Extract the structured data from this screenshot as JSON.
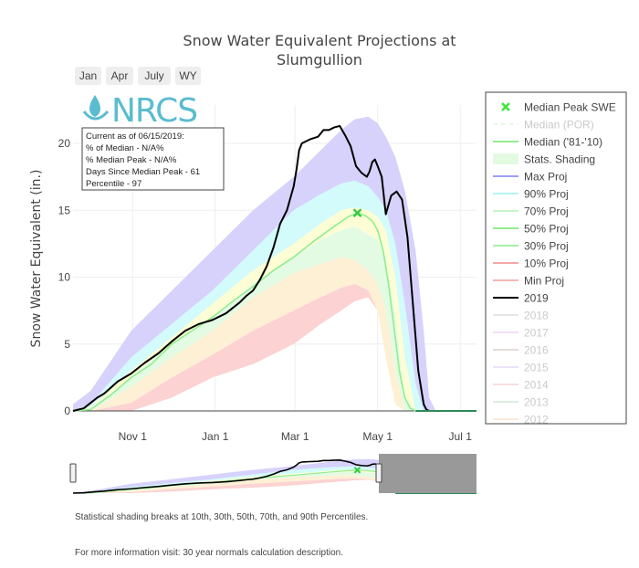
{
  "chart_data": {
    "type": "line",
    "title": "Snow Water Equivalent Projections at Slumgullion",
    "title_lines": [
      "Snow Water Equivalent Projections at",
      "Slumgullion"
    ],
    "ylabel": "Snow Water Equivalent (in.)",
    "xlabel": "",
    "ylim": [
      0,
      22
    ],
    "y_ticks": [
      0,
      5,
      10,
      15,
      20
    ],
    "x_ticks": [
      {
        "label": "Nov  1",
        "day": 31
      },
      {
        "label": "Jan  1",
        "day": 92
      },
      {
        "label": "Mar  1",
        "day": 151
      },
      {
        "label": "May  1",
        "day": 212
      },
      {
        "label": "Jul  1",
        "day": 273
      }
    ],
    "x_range_days": [
      -13,
      285
    ],
    "percentile_bands": {
      "x": [
        -13,
        0,
        30,
        60,
        90,
        120,
        150,
        170,
        185,
        195,
        205,
        212,
        218,
        225,
        232,
        240,
        246,
        250,
        255
      ],
      "p_max": [
        0.5,
        1.5,
        6,
        9,
        12,
        15,
        17.5,
        19.5,
        21,
        21.8,
        22,
        21.5,
        20.5,
        19,
        16.5,
        12,
        6,
        1,
        0
      ],
      "p90": [
        0,
        0.5,
        4,
        6.5,
        9,
        12,
        15,
        16.2,
        17,
        17.2,
        16.8,
        16,
        15,
        12.5,
        8,
        2,
        0,
        0,
        0
      ],
      "p70": [
        0,
        0.3,
        3,
        5.5,
        8,
        10.5,
        12.5,
        14,
        15,
        15.2,
        15,
        14.5,
        13.5,
        10,
        4,
        0,
        0,
        0,
        0
      ],
      "p50": [
        0,
        0.2,
        2.5,
        5,
        7,
        9.5,
        11.5,
        12.8,
        13.5,
        13.8,
        13.2,
        12.8,
        11.5,
        7,
        1,
        0,
        0,
        0,
        0
      ],
      "p30": [
        0,
        0,
        1.8,
        4,
        6,
        8.5,
        10.3,
        11,
        11.5,
        11.3,
        10.5,
        9.5,
        7.5,
        3,
        0,
        0,
        0,
        0,
        0
      ],
      "p10": [
        0,
        0,
        0.6,
        2.5,
        4.2,
        6,
        7.5,
        8.5,
        9.2,
        9.5,
        9,
        7.5,
        4,
        0.5,
        0,
        0,
        0,
        0,
        0
      ],
      "p_min": [
        0,
        0,
        0,
        1,
        2.5,
        3.5,
        5,
        6.5,
        7.5,
        8.2,
        8.5,
        7.5,
        4,
        0.5,
        0,
        0,
        0,
        0,
        0
      ]
    },
    "series": [
      {
        "name": "Median ('81-'10)",
        "color": "#90ee90",
        "x": [
          -13,
          0,
          15,
          30,
          45,
          60,
          75,
          90,
          105,
          120,
          135,
          150,
          165,
          180,
          190,
          197,
          203,
          208,
          212,
          216,
          220,
          225,
          228,
          232,
          236,
          240,
          244
        ],
        "values": [
          0,
          0.1,
          1.2,
          2.5,
          3.5,
          5,
          6,
          7,
          8.2,
          9.3,
          10.5,
          11.5,
          12.7,
          13.8,
          14.5,
          14.8,
          14.6,
          14.2,
          13.5,
          12,
          9.5,
          5.5,
          3,
          1,
          0.2,
          0,
          0
        ]
      },
      {
        "name": "2019",
        "color": "#000000",
        "x": [
          -13,
          -5,
          0,
          5,
          10,
          20,
          30,
          40,
          50,
          60,
          70,
          80,
          90,
          100,
          110,
          115,
          120,
          125,
          130,
          135,
          140,
          145,
          150,
          152,
          154,
          156,
          158,
          162,
          168,
          172,
          176,
          180,
          184,
          188,
          192,
          196,
          200,
          204,
          206,
          208,
          210,
          212,
          215,
          218,
          222,
          226,
          230,
          234,
          238,
          242,
          246,
          248,
          250,
          252,
          255,
          285
        ],
        "values": [
          0,
          0.2,
          0.6,
          1,
          1.3,
          2.2,
          2.8,
          3.6,
          4.3,
          5.2,
          6,
          6.5,
          6.8,
          7.3,
          8.1,
          8.6,
          9,
          9.8,
          10.8,
          12.2,
          14,
          15,
          16.8,
          18,
          19.5,
          20,
          20.1,
          20.3,
          20.5,
          21,
          21,
          21.2,
          21.3,
          20.6,
          19.8,
          18.3,
          17.8,
          17.5,
          17.9,
          18.6,
          18.8,
          18.3,
          17.5,
          14.7,
          16.1,
          16.4,
          15.8,
          13,
          8,
          3,
          0.5,
          0.1,
          0,
          0,
          0,
          0
        ]
      }
    ],
    "median_peak": {
      "name": "Median Peak SWE",
      "day": 197,
      "value": 14.8,
      "color": "#2ecc40"
    },
    "legend": [
      {
        "label": "Median Peak SWE",
        "kind": "marker",
        "color": "#3de83d",
        "muted": false
      },
      {
        "label": "Median (POR)",
        "kind": "dash",
        "color": "#c8f5c8",
        "muted": true
      },
      {
        "label": "Median ('81-'10)",
        "kind": "line",
        "color": "#90ee90",
        "muted": false
      },
      {
        "label": "Stats. Shading",
        "kind": "fill",
        "color": "#e3fbe3",
        "muted": false
      },
      {
        "label": "Max Proj",
        "kind": "line",
        "color": "#9e9ef5",
        "muted": false
      },
      {
        "label": "90% Proj",
        "kind": "line",
        "color": "#b5f5f5",
        "muted": false
      },
      {
        "label": "70% Proj",
        "kind": "line",
        "color": "#c8f5c8",
        "muted": false
      },
      {
        "label": "50% Proj",
        "kind": "line",
        "color": "#90ee90",
        "muted": false
      },
      {
        "label": "30% Proj",
        "kind": "line",
        "color": "#a7f0a7",
        "muted": false
      },
      {
        "label": "10% Proj",
        "kind": "line",
        "color": "#f5a7a7",
        "muted": false
      },
      {
        "label": "Min Proj",
        "kind": "line",
        "color": "#f7b5b5",
        "muted": false
      },
      {
        "label": "2019",
        "kind": "line",
        "color": "#000000",
        "muted": false
      },
      {
        "label": "2018",
        "kind": "line",
        "color": "#c9c9c9",
        "muted": true
      },
      {
        "label": "2017",
        "kind": "line",
        "color": "#e7b5e7",
        "muted": true
      },
      {
        "label": "2016",
        "kind": "line",
        "color": "#cbb3ae",
        "muted": true
      },
      {
        "label": "2015",
        "kind": "line",
        "color": "#d6c2f2",
        "muted": true
      },
      {
        "label": "2014",
        "kind": "line",
        "color": "#f5b7b7",
        "muted": true
      },
      {
        "label": "2013",
        "kind": "line",
        "color": "#b7d9b7",
        "muted": true
      },
      {
        "label": "2012",
        "kind": "line",
        "color": "#f9d0a8",
        "muted": true
      }
    ]
  },
  "range_buttons": [
    "Jan",
    "Apr",
    "July",
    "WY"
  ],
  "info_box": [
    "Current as of 06/15/2019:",
    "% of Median - N/A%",
    "% Median Peak - N/A%",
    "Days Since Median Peak - 61",
    "Percentile - 97"
  ],
  "logo_text": "NRCS",
  "footer": {
    "note": "Statistical shading breaks at 10th, 30th, 50th, 70th, and 90th Percentiles.",
    "info": "For more information visit: 30 year normals calculation description."
  },
  "colors": {
    "band_max": "#d6d2fb",
    "band_90": "#d3fbfb",
    "band_70": "#e3fbe3",
    "band_50": "#fdfdd5",
    "band_30": "#fdf0d5",
    "band_10": "#fcd2d2",
    "grid": "#eeeeee",
    "logo": "#5bbccf",
    "range_mask": "#999999"
  }
}
